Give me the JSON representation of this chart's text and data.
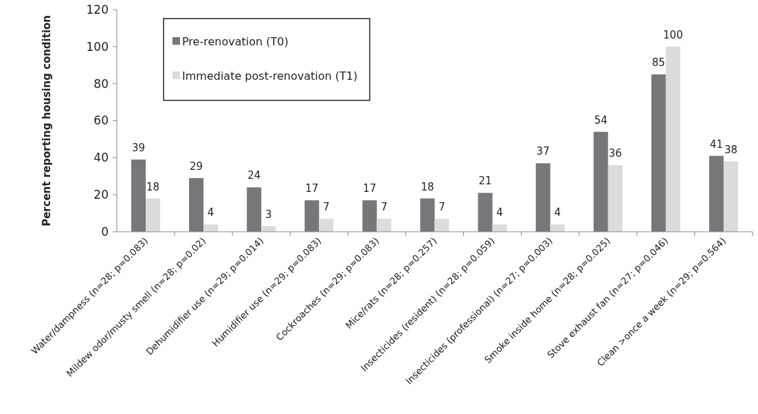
{
  "chart_data": {
    "type": "bar",
    "ylabel": "Percent reporting housing condition",
    "categories": [
      "Water/dampness (n=28; p=0.083)",
      "Mildew odor/musty smell (n=28; p=0.02)",
      "Dehumidifier use (n=29; p=0.014)",
      "Humidifier use (n=29; p=0.083)",
      "Cockroaches (n=29; p=0.083)",
      "Mice/rats (n=28; p=0.257)",
      "Insecticides (resident) (n=28; p=0.059)",
      "Insecticides (professional) (n=27; p=0.003)",
      "Smoke inside home (n=28; p=0.025)",
      "Stove exhaust fan (n=27; p=0.046)",
      "Clean >once a week (n=29; p=0.564)"
    ],
    "series": [
      {
        "name": "Pre-renovation (T0)",
        "color": "#77777b",
        "values": [
          39,
          29,
          24,
          17,
          17,
          18,
          21,
          37,
          54,
          85,
          41
        ]
      },
      {
        "name": "Immediate post-renovation (T1)",
        "color": "#dcdcdc",
        "values": [
          18,
          4,
          3,
          7,
          7,
          7,
          4,
          4,
          36,
          100,
          38
        ]
      }
    ],
    "ylim": [
      0,
      120
    ],
    "yticks": [
      0,
      20,
      40,
      60,
      80,
      100,
      120
    ],
    "grid": false,
    "legend": "top left",
    "data_labels": true
  }
}
